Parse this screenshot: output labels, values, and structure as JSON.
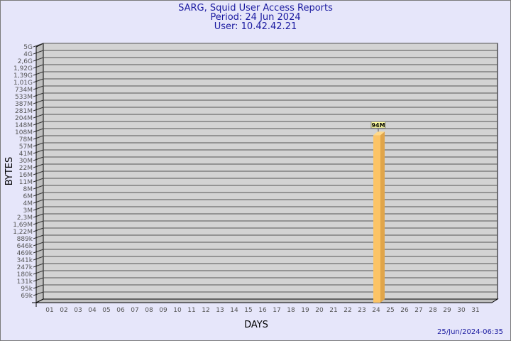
{
  "header": {
    "title": "SARG, Squid User Access Reports",
    "period": "Period: 24 Jun 2024",
    "user": "User: 10.42.42.21"
  },
  "timestamp": "25/Jun/2024-06:35",
  "chart_data": {
    "type": "bar",
    "title": "SARG, Squid User Access Reports",
    "xlabel": "DAYS",
    "ylabel": "BYTES",
    "y_scale": "log",
    "y_tick_labels": [
      "5G",
      "4G",
      "2,6G",
      "1,92G",
      "1,39G",
      "1,01G",
      "734M",
      "533M",
      "387M",
      "281M",
      "204M",
      "148M",
      "108M",
      "78M",
      "57M",
      "41M",
      "30M",
      "22M",
      "16M",
      "11M",
      "8M",
      "6M",
      "4M",
      "3M",
      "2,3M",
      "1,69M",
      "1,22M",
      "889k",
      "646k",
      "469k",
      "341k",
      "247k",
      "180k",
      "131k",
      "95k",
      "69k"
    ],
    "categories": [
      "01",
      "02",
      "03",
      "04",
      "05",
      "06",
      "07",
      "08",
      "09",
      "10",
      "11",
      "12",
      "13",
      "14",
      "15",
      "16",
      "17",
      "18",
      "19",
      "20",
      "21",
      "22",
      "23",
      "24",
      "25",
      "26",
      "27",
      "28",
      "29",
      "30",
      "31"
    ],
    "values": [
      null,
      null,
      null,
      null,
      null,
      null,
      null,
      null,
      null,
      null,
      null,
      null,
      null,
      null,
      null,
      null,
      null,
      null,
      null,
      null,
      null,
      null,
      null,
      94000000,
      null,
      null,
      null,
      null,
      null,
      null,
      null
    ],
    "data_labels": {
      "24": "94M"
    },
    "grid": true,
    "bar_color": "#fcc466",
    "wall_color": "#d3d3d3"
  }
}
